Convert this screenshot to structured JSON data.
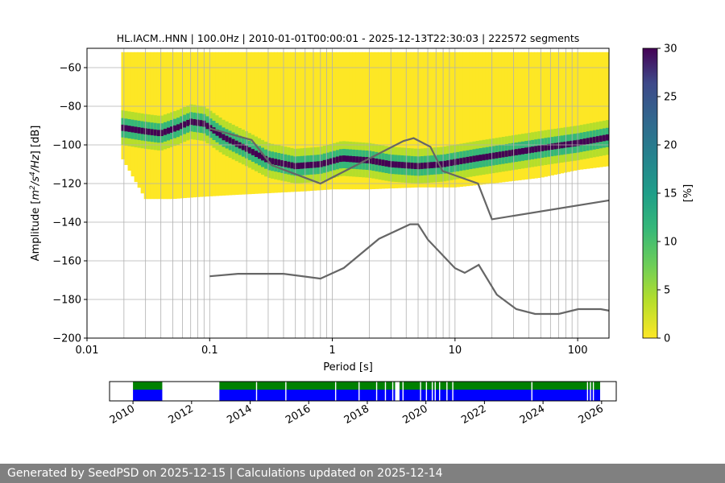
{
  "chart_data": [
    {
      "type": "heatmap",
      "title": "HL.IACM..HNN | 100.0Hz | 2010-01-01T00:00:01 - 2025-12-13T22:30:03 | 222572 segments",
      "xlabel": "Period [s]",
      "ylabel_parts": [
        "Amplitude [",
        "m",
        "2",
        "/",
        "s",
        "4",
        "/",
        "Hz",
        "] [dB]"
      ],
      "x_scale": "log",
      "xlim": [
        0.01,
        180
      ],
      "ylim": [
        -200,
        -50
      ],
      "x_ticks": [
        {
          "value": 0.01,
          "label": "0.01"
        },
        {
          "value": 0.1,
          "label": "0.1"
        },
        {
          "value": 1,
          "label": "1"
        },
        {
          "value": 10,
          "label": "10"
        },
        {
          "value": 100,
          "label": "100"
        }
      ],
      "y_ticks": [
        {
          "value": -60,
          "label": "−60"
        },
        {
          "value": -80,
          "label": "−80"
        },
        {
          "value": -100,
          "label": "−100"
        },
        {
          "value": -120,
          "label": "−120"
        },
        {
          "value": -140,
          "label": "−140"
        },
        {
          "value": -160,
          "label": "−160"
        },
        {
          "value": -180,
          "label": "−180"
        },
        {
          "value": -200,
          "label": "−200"
        }
      ],
      "grid": true,
      "colormap": "viridis_r",
      "colorbar": {
        "label": "[%]",
        "range": [
          0,
          30
        ],
        "ticks": [
          {
            "value": 0,
            "label": "0"
          },
          {
            "value": 5,
            "label": "5"
          },
          {
            "value": 10,
            "label": "10"
          },
          {
            "value": 15,
            "label": "15"
          },
          {
            "value": 20,
            "label": "20"
          },
          {
            "value": 25,
            "label": "25"
          },
          {
            "value": 30,
            "label": "30"
          }
        ]
      },
      "psd_mode": {
        "period": [
          0.019,
          0.03,
          0.04,
          0.055,
          0.07,
          0.09,
          0.13,
          0.2,
          0.3,
          0.5,
          0.8,
          1.2,
          2,
          3,
          5,
          8,
          15,
          30,
          60,
          100,
          180
        ],
        "db": [
          -91,
          -93,
          -94,
          -91,
          -88,
          -89,
          -96,
          -102,
          -108,
          -111,
          -110,
          -107,
          -108,
          -110,
          -111,
          -110,
          -107,
          -104,
          -101,
          -99,
          -96
        ]
      },
      "psd_envelope": {
        "period": [
          0.019,
          0.03,
          0.05,
          0.08,
          0.15,
          0.3,
          0.6,
          1,
          2,
          5,
          10,
          20,
          50,
          100,
          180
        ],
        "upper_db": [
          -52,
          -52,
          -52,
          -52,
          -52,
          -52,
          -52,
          -52,
          -52,
          -52,
          -52,
          -52,
          -52,
          -52,
          -52
        ],
        "lower_db": [
          -106,
          -128,
          -128,
          -127,
          -126,
          -125,
          -124,
          -123,
          -123,
          -122,
          -122,
          -120,
          -117,
          -113,
          -111
        ]
      },
      "noise_models": [
        {
          "period": [
            0.1,
            0.17,
            0.4,
            0.8,
            1.24,
            2.4,
            4.3,
            5.0,
            6.0,
            10.0,
            12.0,
            15.6,
            21.9,
            31.6,
            45.0,
            70.0,
            101.0,
            154.0,
            180
          ],
          "db": [
            -168,
            -166.7,
            -166.7,
            -169.2,
            -163.7,
            -148.6,
            -141.1,
            -141.1,
            -149,
            -163.8,
            -166.2,
            -162.1,
            -177.5,
            -185,
            -187.5,
            -187.5,
            -185,
            -185,
            -185.8
          ]
        },
        {
          "period": [
            0.1,
            0.22,
            0.32,
            0.8,
            3.8,
            4.6,
            6.3,
            7.9,
            15.4,
            20.0,
            180
          ],
          "db": [
            -91.5,
            -97.4,
            -110.5,
            -120,
            -98,
            -96.5,
            -101,
            -113.5,
            -120,
            -138.5,
            -128.7
          ]
        }
      ],
      "data_gaps_vertical_lines_period": [
        0.02,
        0.03,
        0.04,
        0.05,
        0.06,
        0.07,
        0.08,
        0.09,
        0.1,
        0.2,
        0.3,
        0.4,
        0.5,
        0.6,
        0.7,
        0.8,
        0.9,
        1,
        2,
        3,
        4,
        5,
        6,
        7,
        8,
        9,
        10,
        20,
        30,
        40,
        50,
        60,
        70,
        80,
        90,
        100
      ]
    },
    {
      "type": "timeline",
      "xlim": [
        2009.2,
        2026.5
      ],
      "x_ticks": [
        {
          "value": 2010,
          "label": "2010"
        },
        {
          "value": 2012,
          "label": "2012"
        },
        {
          "value": 2014,
          "label": "2014"
        },
        {
          "value": 2016,
          "label": "2016"
        },
        {
          "value": 2018,
          "label": "2018"
        },
        {
          "value": 2020,
          "label": "2020"
        },
        {
          "value": 2022,
          "label": "2022"
        },
        {
          "value": 2024,
          "label": "2024"
        },
        {
          "value": 2026,
          "label": "2026"
        }
      ],
      "data_available_spans": [
        [
          2010.0,
          2011.0
        ],
        [
          2012.95,
          2025.95
        ]
      ],
      "gaps": [
        2014.2,
        2015.2,
        2016.9,
        2017.7,
        2018.3,
        2018.6,
        2018.85,
        2019.2,
        2019.8,
        2020.0,
        2020.2,
        2020.3,
        2020.45,
        2020.7,
        2020.9,
        2023.6,
        2025.5,
        2025.6,
        2025.7
      ],
      "major_gap": [
        2018.95,
        2019.1
      ],
      "colors": {
        "top": "#008000",
        "bottom": "#0000ff"
      }
    }
  ],
  "footer": "Generated by SeedPSD on 2025-12-15 | Calculations updated on 2025-12-14"
}
